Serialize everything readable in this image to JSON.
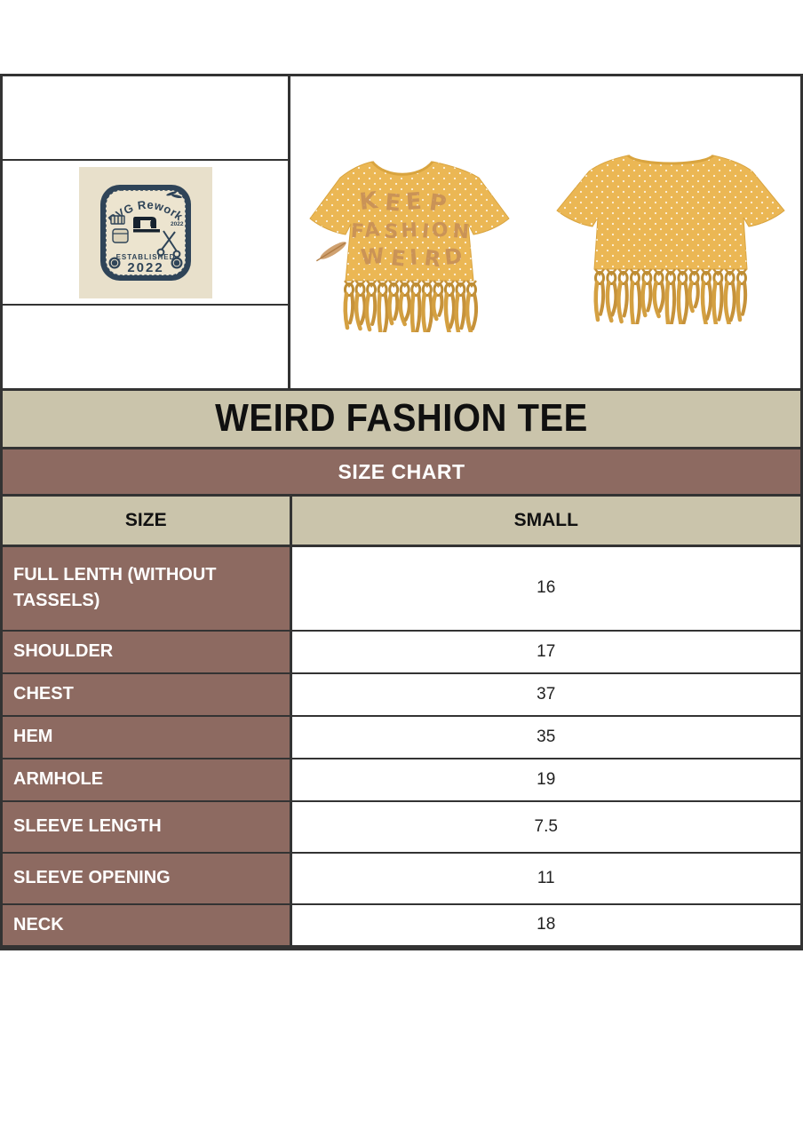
{
  "colors": {
    "beige_bar": "#cac4ab",
    "mauve_bar": "#8d6a61",
    "border": "#333333",
    "shirt_yellow": "#ebb754",
    "fringe_gold": "#d4a041",
    "print_brown": "#c79057",
    "badge_navy": "#2f4458",
    "badge_beige": "#e8e0cb"
  },
  "logo": {
    "name": "RVG Reworks",
    "year_small": "2022",
    "established_label": "ESTABLISHED",
    "established_year": "2022"
  },
  "product": {
    "title": "WEIRD FASHION TEE",
    "front_print": {
      "line1": "KEEP",
      "line2": "FASHION",
      "line3": "WEIRD"
    }
  },
  "size_chart": {
    "heading": "SIZE CHART",
    "columns": {
      "size": "SIZE",
      "small": "SMALL"
    },
    "rows": [
      {
        "label": "FULL LENTH (WITHOUT TASSELS)",
        "value": "16"
      },
      {
        "label": "SHOULDER",
        "value": "17"
      },
      {
        "label": "CHEST",
        "value": "37"
      },
      {
        "label": "HEM",
        "value": "35"
      },
      {
        "label": "ARMHOLE",
        "value": "19"
      },
      {
        "label": "SLEEVE LENGTH",
        "value": "7.5"
      },
      {
        "label": "SLEEVE OPENING",
        "value": "11"
      },
      {
        "label": "NECK",
        "value": "18"
      }
    ]
  }
}
